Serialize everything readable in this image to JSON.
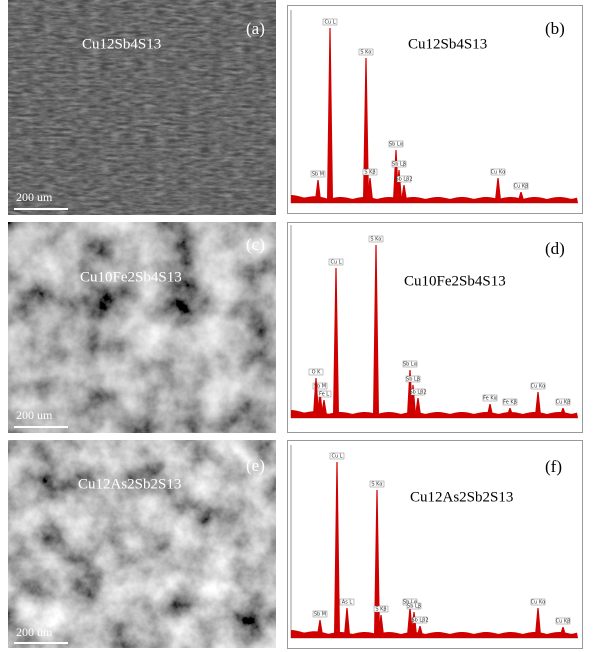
{
  "panels": [
    {
      "label": "(a)",
      "formula": "Cu12Sb4S13",
      "scale_bar": "200 um"
    },
    {
      "label": "(b)",
      "formula": "Cu12Sb4S13",
      "peaks": [
        "Cu L",
        "S Kα",
        "Sb Lα",
        "Sb Lβ",
        "Sb Lβ2",
        "Sb M",
        "S Kβ",
        "Cu Kα",
        "Cu Kβ"
      ]
    },
    {
      "label": "(c)",
      "formula": "Cu10Fe2Sb4S13",
      "scale_bar": "200 um"
    },
    {
      "label": "(d)",
      "formula": "Cu10Fe2Sb4S13",
      "peaks": [
        "Cu L",
        "S Kα",
        "Sb Lα",
        "Sb Lβ",
        "Sb Lβ2",
        "Fe Kα",
        "Fe Kβ",
        "Cu Kα",
        "Cu Kβ",
        "Sb M",
        "Fe L",
        "O K"
      ]
    },
    {
      "label": "(e)",
      "formula": "Cu12As2Sb2S13",
      "scale_bar": "200 um"
    },
    {
      "label": "(f)",
      "formula": "Cu12As2Sb2S13",
      "peaks": [
        "Cu L",
        "S Kα",
        "As L",
        "Sb Lα",
        "Sb Lβ",
        "Sb Lβ2",
        "Sb M",
        "S Kβ",
        "Cu Kα",
        "Cu Kβ"
      ]
    }
  ]
}
